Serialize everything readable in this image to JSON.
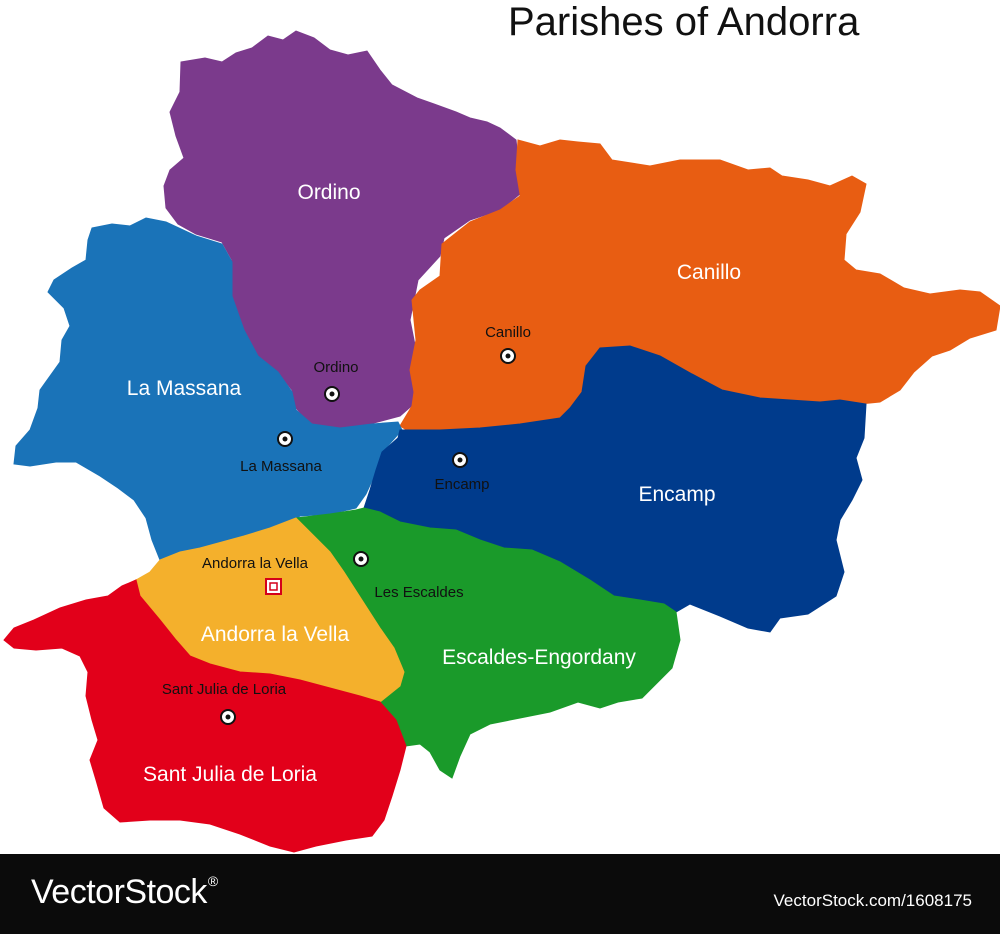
{
  "title": "Parishes of Andorra",
  "colors": {
    "ordino": "#7b3a8c",
    "canillo": "#e85d12",
    "la_massana": "#1a73b8",
    "encamp": "#003b8c",
    "escaldes": "#1a9a2a",
    "andorra_la_vella": "#f4b02c",
    "sant_julia": "#e2001a",
    "footer": "#0b0b0b"
  },
  "parishes": {
    "ordino": "Ordino",
    "canillo": "Canillo",
    "la_massana": "La Massana",
    "encamp": "Encamp",
    "escaldes": "Escaldes-Engordany",
    "andorra_la_vella": "Andorra la Vella",
    "sant_julia": "Sant Julia de Loria"
  },
  "towns": {
    "ordino": "Ordino",
    "canillo": "Canillo",
    "la_massana": "La Massana",
    "encamp": "Encamp",
    "les_escaldes": "Les Escaldes",
    "andorra_la_vella": "Andorra la Vella",
    "sant_julia": "Sant Julia de Loria"
  },
  "footer": {
    "logo": "VectorStock",
    "registered": "®",
    "url": "VectorStock.com/1608175"
  }
}
